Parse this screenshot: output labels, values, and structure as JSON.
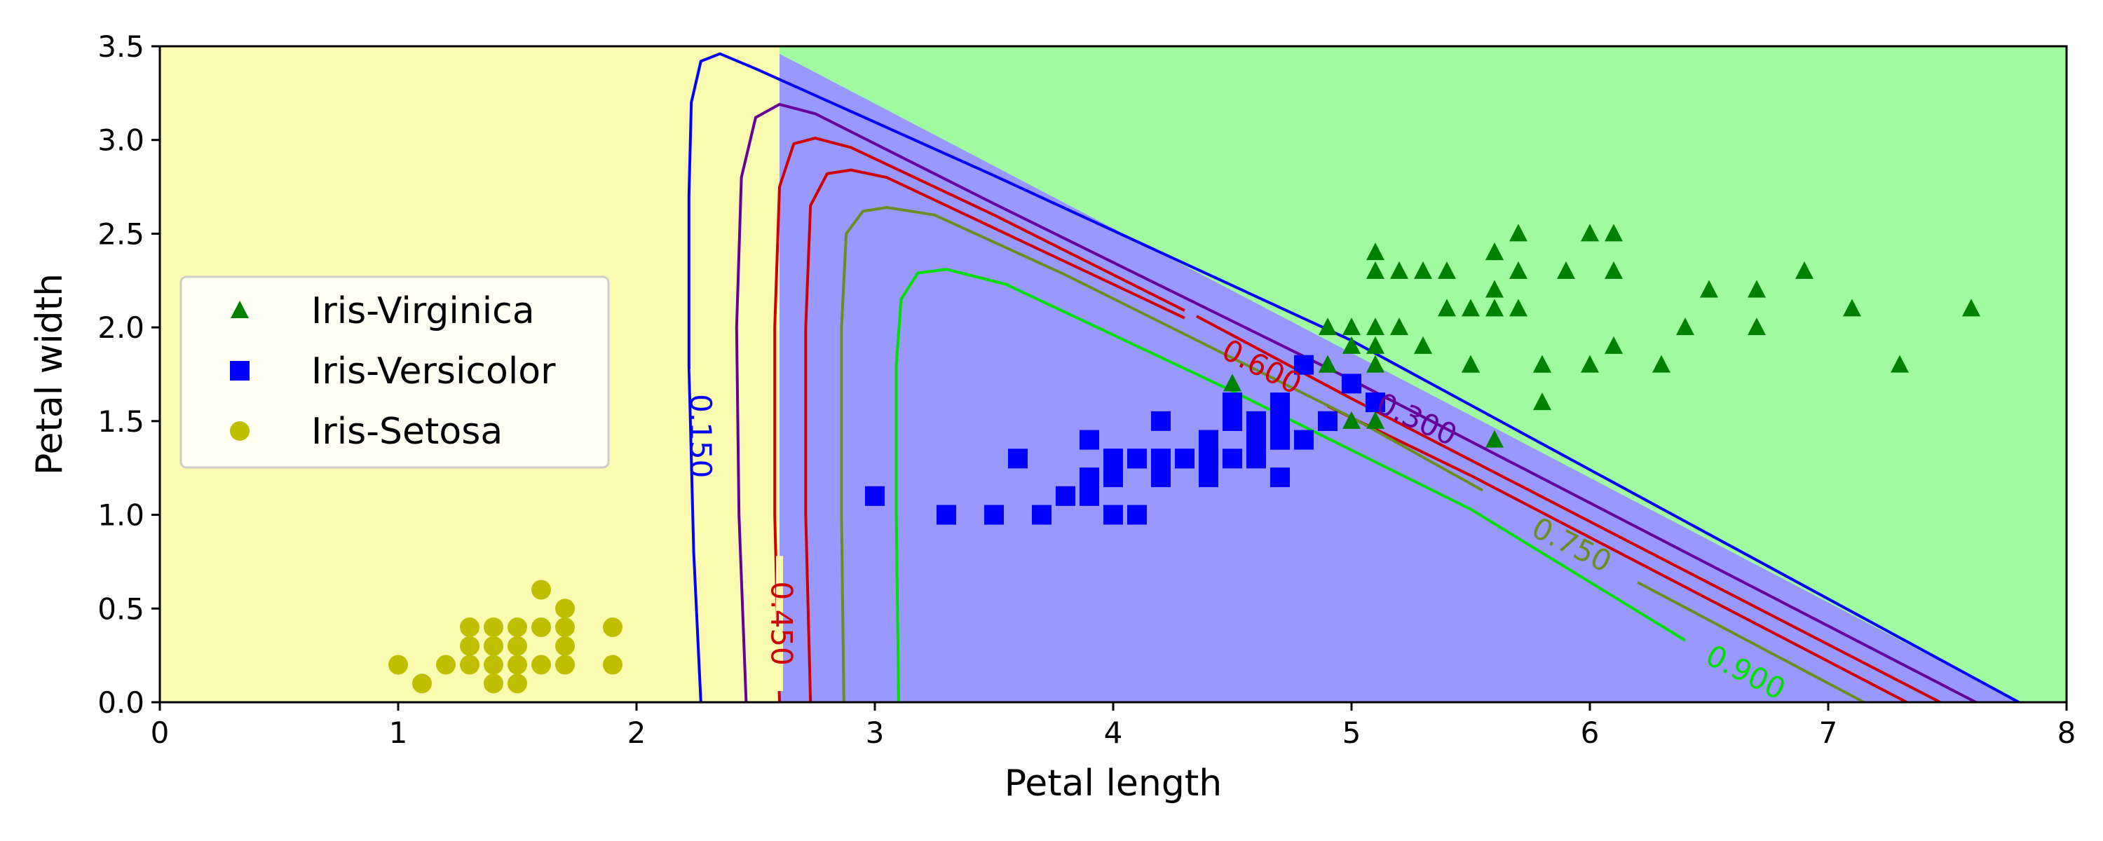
{
  "chart_data": {
    "type": "scatter",
    "xlabel": "Petal length",
    "ylabel": "Petal width",
    "xlim": [
      0,
      8
    ],
    "ylim": [
      0,
      3.5
    ],
    "x_ticks": [
      "0",
      "1",
      "2",
      "3",
      "4",
      "5",
      "6",
      "7",
      "8"
    ],
    "y_ticks": [
      "0.0",
      "0.5",
      "1.0",
      "1.5",
      "2.0",
      "2.5",
      "3.0",
      "3.5"
    ],
    "grid": false,
    "legend_position": "center-left",
    "decision_regions": [
      {
        "class": "Iris-Setosa",
        "color": "#fafab0",
        "x_max": 2.6
      },
      {
        "class": "Iris-Versicolor",
        "color": "#9898ff",
        "boundary_from": [
          2.6,
          3.46
        ],
        "boundary_to": [
          7.8,
          0.0
        ]
      },
      {
        "class": "Iris-Virginica",
        "color": "#a0faa0"
      }
    ],
    "series": [
      {
        "name": "Iris-Virginica",
        "marker": "triangle",
        "color": "#008000",
        "points": [
          [
            6.0,
            2.5
          ],
          [
            5.8,
            1.8
          ],
          [
            7.1,
            2.1
          ],
          [
            6.3,
            1.8
          ],
          [
            6.5,
            2.2
          ],
          [
            7.6,
            2.1
          ],
          [
            4.5,
            1.7
          ],
          [
            7.3,
            1.8
          ],
          [
            5.8,
            1.8
          ],
          [
            6.1,
            2.5
          ],
          [
            5.1,
            2.0
          ],
          [
            5.3,
            1.9
          ],
          [
            5.5,
            2.1
          ],
          [
            5.0,
            2.0
          ],
          [
            5.1,
            2.4
          ],
          [
            5.3,
            2.3
          ],
          [
            5.5,
            1.8
          ],
          [
            6.7,
            2.2
          ],
          [
            6.9,
            2.3
          ],
          [
            5.0,
            1.5
          ],
          [
            5.7,
            2.3
          ],
          [
            4.9,
            2.0
          ],
          [
            6.7,
            2.0
          ],
          [
            4.9,
            1.8
          ],
          [
            5.7,
            2.1
          ],
          [
            6.0,
            1.8
          ],
          [
            4.8,
            1.8
          ],
          [
            4.9,
            1.8
          ],
          [
            5.6,
            2.1
          ],
          [
            5.8,
            1.6
          ],
          [
            6.1,
            1.9
          ],
          [
            6.4,
            2.0
          ],
          [
            5.6,
            2.2
          ],
          [
            5.1,
            1.5
          ],
          [
            5.6,
            1.4
          ],
          [
            6.1,
            2.3
          ],
          [
            5.6,
            2.4
          ],
          [
            5.5,
            1.8
          ],
          [
            4.8,
            1.8
          ],
          [
            5.4,
            2.1
          ],
          [
            5.6,
            2.4
          ],
          [
            5.1,
            2.3
          ],
          [
            5.1,
            1.9
          ],
          [
            5.9,
            2.3
          ],
          [
            5.7,
            2.5
          ],
          [
            5.2,
            2.3
          ],
          [
            5.0,
            1.9
          ],
          [
            5.2,
            2.0
          ],
          [
            5.4,
            2.3
          ],
          [
            5.1,
            1.8
          ]
        ]
      },
      {
        "name": "Iris-Versicolor",
        "marker": "square",
        "color": "#0000ff",
        "points": [
          [
            4.7,
            1.4
          ],
          [
            4.5,
            1.5
          ],
          [
            4.9,
            1.5
          ],
          [
            4.0,
            1.3
          ],
          [
            4.6,
            1.5
          ],
          [
            4.5,
            1.3
          ],
          [
            4.7,
            1.6
          ],
          [
            3.3,
            1.0
          ],
          [
            4.6,
            1.3
          ],
          [
            3.9,
            1.4
          ],
          [
            3.5,
            1.0
          ],
          [
            4.2,
            1.5
          ],
          [
            4.0,
            1.0
          ],
          [
            4.7,
            1.4
          ],
          [
            3.6,
            1.3
          ],
          [
            4.4,
            1.4
          ],
          [
            4.5,
            1.5
          ],
          [
            4.1,
            1.0
          ],
          [
            4.5,
            1.5
          ],
          [
            3.9,
            1.1
          ],
          [
            4.8,
            1.8
          ],
          [
            4.0,
            1.3
          ],
          [
            4.9,
            1.5
          ],
          [
            4.7,
            1.2
          ],
          [
            4.3,
            1.3
          ],
          [
            4.4,
            1.4
          ],
          [
            4.8,
            1.4
          ],
          [
            5.0,
            1.7
          ],
          [
            4.5,
            1.5
          ],
          [
            3.5,
            1.0
          ],
          [
            3.8,
            1.1
          ],
          [
            3.7,
            1.0
          ],
          [
            3.9,
            1.2
          ],
          [
            5.1,
            1.6
          ],
          [
            4.5,
            1.5
          ],
          [
            4.5,
            1.6
          ],
          [
            4.7,
            1.5
          ],
          [
            4.4,
            1.3
          ],
          [
            4.1,
            1.3
          ],
          [
            4.0,
            1.3
          ],
          [
            4.4,
            1.2
          ],
          [
            4.6,
            1.4
          ],
          [
            4.0,
            1.2
          ],
          [
            3.3,
            1.0
          ],
          [
            4.2,
            1.3
          ],
          [
            4.2,
            1.2
          ],
          [
            4.2,
            1.3
          ],
          [
            4.3,
            1.3
          ],
          [
            3.0,
            1.1
          ],
          [
            4.1,
            1.3
          ]
        ]
      },
      {
        "name": "Iris-Setosa",
        "marker": "circle",
        "color": "#bfbf00",
        "points": [
          [
            1.4,
            0.2
          ],
          [
            1.3,
            0.2
          ],
          [
            1.5,
            0.2
          ],
          [
            1.7,
            0.4
          ],
          [
            1.4,
            0.3
          ],
          [
            1.5,
            0.1
          ],
          [
            1.6,
            0.2
          ],
          [
            1.4,
            0.1
          ],
          [
            1.1,
            0.1
          ],
          [
            1.2,
            0.2
          ],
          [
            1.3,
            0.4
          ],
          [
            1.7,
            0.3
          ],
          [
            1.5,
            0.3
          ],
          [
            1.0,
            0.2
          ],
          [
            1.7,
            0.5
          ],
          [
            1.9,
            0.2
          ],
          [
            1.6,
            0.4
          ],
          [
            1.5,
            0.4
          ],
          [
            1.6,
            0.6
          ],
          [
            1.9,
            0.4
          ],
          [
            1.3,
            0.3
          ],
          [
            1.4,
            0.4
          ],
          [
            1.7,
            0.2
          ]
        ]
      }
    ],
    "contours": [
      {
        "label": "0.150",
        "color": "#0000ff",
        "label_at": [
          2.26,
          1.42
        ],
        "label_rot": 90,
        "gap": [
          [
            2.24,
            1.78
          ],
          [
            2.26,
            1.05
          ]
        ],
        "points": [
          [
            2.27,
            0.0
          ],
          [
            2.24,
            0.8
          ],
          [
            2.22,
            1.8
          ],
          [
            2.22,
            2.7
          ],
          [
            2.23,
            3.2
          ],
          [
            2.27,
            3.42
          ],
          [
            2.35,
            3.46
          ],
          [
            2.5,
            3.38
          ],
          [
            3.5,
            2.81
          ],
          [
            5.0,
            1.93
          ],
          [
            7.8,
            0.0
          ]
        ]
      },
      {
        "label": "0.300",
        "color": "#660099",
        "label_at": [
          5.27,
          1.5
        ],
        "label_rot": 25,
        "gap": [
          [
            5.05,
            1.62
          ],
          [
            5.5,
            1.36
          ]
        ],
        "points": [
          [
            2.46,
            0.0
          ],
          [
            2.43,
            1.0
          ],
          [
            2.42,
            2.0
          ],
          [
            2.44,
            2.8
          ],
          [
            2.5,
            3.12
          ],
          [
            2.6,
            3.19
          ],
          [
            2.75,
            3.14
          ],
          [
            3.5,
            2.66
          ],
          [
            5.0,
            1.72
          ],
          [
            7.62,
            0.0
          ]
        ]
      },
      {
        "label": "0.450",
        "color": "#cc0000",
        "label_at": [
          2.6,
          0.42
        ],
        "label_rot": 90,
        "gap": [
          [
            2.6,
            0.78
          ],
          [
            2.6,
            0.06
          ]
        ],
        "points": [
          [
            2.6,
            0.0
          ],
          [
            2.58,
            1.0
          ],
          [
            2.58,
            2.0
          ],
          [
            2.6,
            2.75
          ],
          [
            2.66,
            2.98
          ],
          [
            2.75,
            3.01
          ],
          [
            2.9,
            2.96
          ],
          [
            3.5,
            2.6
          ],
          [
            4.3,
            2.09
          ]
        ]
      },
      {
        "label": "",
        "color": "#cc0000",
        "points": [
          [
            4.35,
            2.06
          ],
          [
            5.0,
            1.62
          ],
          [
            7.47,
            0.0
          ]
        ]
      },
      {
        "label": "0.600",
        "color": "#cc0000",
        "label_at": [
          4.62,
          1.78
        ],
        "label_rot": 27,
        "gap": [
          [
            4.3,
            1.94
          ],
          [
            4.9,
            1.62
          ]
        ],
        "points": [
          [
            2.73,
            0.0
          ],
          [
            2.71,
            1.0
          ],
          [
            2.71,
            2.0
          ],
          [
            2.73,
            2.65
          ],
          [
            2.8,
            2.82
          ],
          [
            2.9,
            2.84
          ],
          [
            3.05,
            2.8
          ],
          [
            3.5,
            2.53
          ],
          [
            4.3,
            2.05
          ]
        ]
      },
      {
        "label": "",
        "color": "#cc0000",
        "points": [
          [
            4.9,
            1.58
          ],
          [
            5.5,
            1.21
          ],
          [
            7.33,
            0.0
          ]
        ]
      },
      {
        "label": "0.750",
        "color": "#6b8e23",
        "label_at": [
          5.92,
          0.83
        ],
        "label_rot": 27,
        "gap": [
          [
            5.55,
            1.03
          ],
          [
            6.2,
            0.64
          ]
        ],
        "points": [
          [
            2.87,
            0.0
          ],
          [
            2.86,
            1.0
          ],
          [
            2.86,
            2.0
          ],
          [
            2.88,
            2.5
          ],
          [
            2.95,
            2.62
          ],
          [
            3.05,
            2.64
          ],
          [
            3.25,
            2.6
          ],
          [
            3.8,
            2.28
          ],
          [
            5.0,
            1.52
          ],
          [
            5.55,
            1.13
          ]
        ]
      },
      {
        "label": "",
        "color": "#6b8e23",
        "points": [
          [
            6.2,
            0.64
          ],
          [
            7.15,
            0.0
          ]
        ]
      },
      {
        "label": "0.900",
        "color": "#00dd00",
        "label_at": [
          6.65,
          0.15
        ],
        "label_rot": 27,
        "gap": [
          [
            6.4,
            0.32
          ],
          [
            6.9,
            0.0
          ]
        ],
        "points": [
          [
            3.1,
            0.0
          ],
          [
            3.09,
            1.0
          ],
          [
            3.09,
            1.8
          ],
          [
            3.11,
            2.15
          ],
          [
            3.18,
            2.29
          ],
          [
            3.3,
            2.31
          ],
          [
            3.55,
            2.23
          ],
          [
            4.5,
            1.66
          ],
          [
            5.5,
            1.03
          ],
          [
            6.4,
            0.33
          ]
        ]
      }
    ],
    "legend": [
      "Iris-Virginica",
      "Iris-Versicolor",
      "Iris-Setosa"
    ]
  }
}
